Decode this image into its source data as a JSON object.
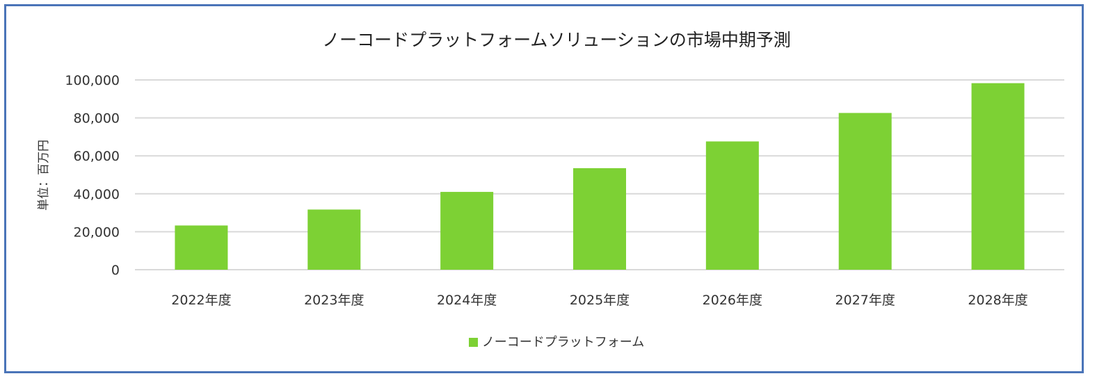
{
  "chart_data": {
    "type": "bar",
    "title": "ノーコードプラットフォームソリューションの市場中期予測",
    "ylabel": "単位：百万円",
    "xlabel": "",
    "categories": [
      "2022年度",
      "2023年度",
      "2024年度",
      "2025年度",
      "2026年度",
      "2027年度",
      "2028年度"
    ],
    "series": [
      {
        "name": "ノーコードプラットフォーム",
        "values": [
          23300,
          31700,
          41000,
          53500,
          67600,
          82600,
          98300
        ],
        "color": "#7dd134"
      }
    ],
    "ylim": [
      0,
      100000
    ],
    "yticks": [
      "0",
      "20,000",
      "40,000",
      "60,000",
      "80,000",
      "100,000"
    ],
    "grid": true,
    "legend": "bottom",
    "frame_color": "#4a74b8"
  }
}
